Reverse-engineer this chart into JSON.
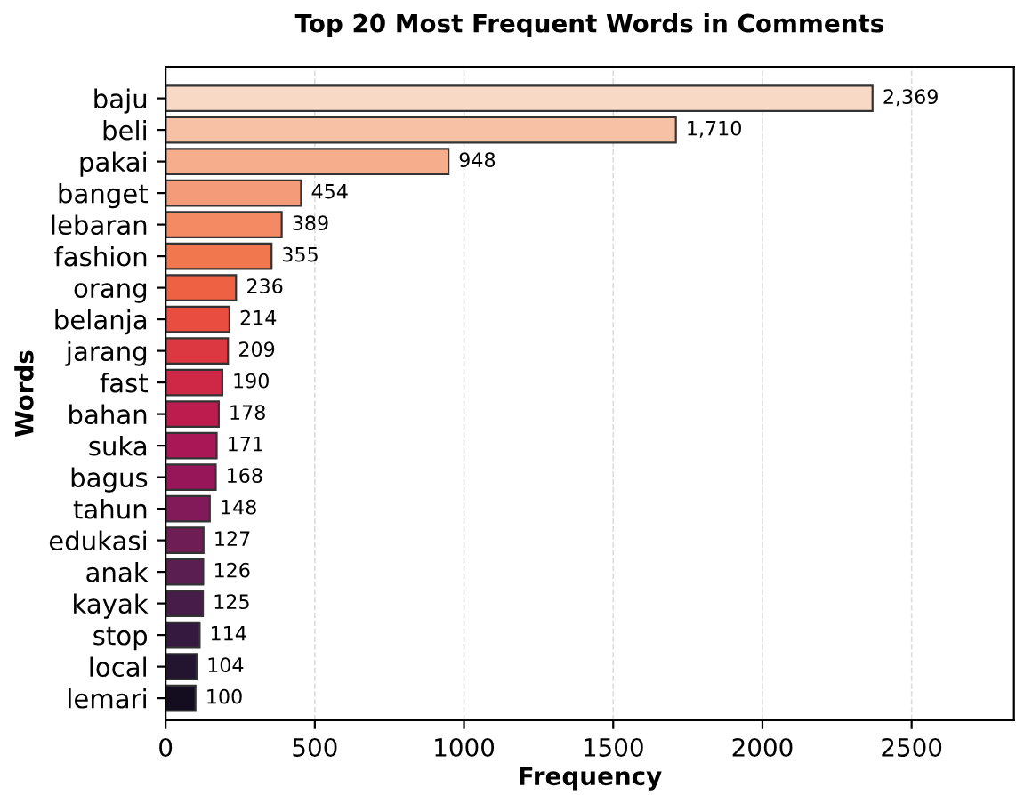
{
  "chart_data": {
    "type": "bar",
    "orientation": "horizontal",
    "title": "Top 20 Most Frequent Words in Comments",
    "xlabel": "Frequency",
    "ylabel": "Words",
    "categories": [
      "baju",
      "beli",
      "pakai",
      "banget",
      "lebaran",
      "fashion",
      "orang",
      "belanja",
      "jarang",
      "fast",
      "bahan",
      "suka",
      "bagus",
      "tahun",
      "edukasi",
      "anak",
      "kayak",
      "stop",
      "local",
      "lemari"
    ],
    "values": [
      2369,
      1710,
      948,
      454,
      389,
      355,
      236,
      214,
      209,
      190,
      178,
      171,
      168,
      148,
      127,
      126,
      125,
      114,
      104,
      100
    ],
    "value_labels": [
      "2,369",
      "1,710",
      "948",
      "454",
      "389",
      "355",
      "236",
      "214",
      "209",
      "190",
      "178",
      "171",
      "168",
      "148",
      "127",
      "126",
      "125",
      "114",
      "104",
      "100"
    ],
    "colors": [
      "#f8d9c6",
      "#f6c1a5",
      "#f5ad8c",
      "#f49b79",
      "#f38a63",
      "#f1774f",
      "#ee6243",
      "#e94d40",
      "#dc3841",
      "#cf2847",
      "#bd1c4f",
      "#aa1756",
      "#961659",
      "#821a59",
      "#6e1d55",
      "#5b1e51",
      "#471c48",
      "#35193e",
      "#231530",
      "#140d1f"
    ],
    "xlim": [
      0,
      2843
    ],
    "xticks": [
      0,
      500,
      1000,
      1500,
      2000,
      2500
    ],
    "grid": "x"
  }
}
